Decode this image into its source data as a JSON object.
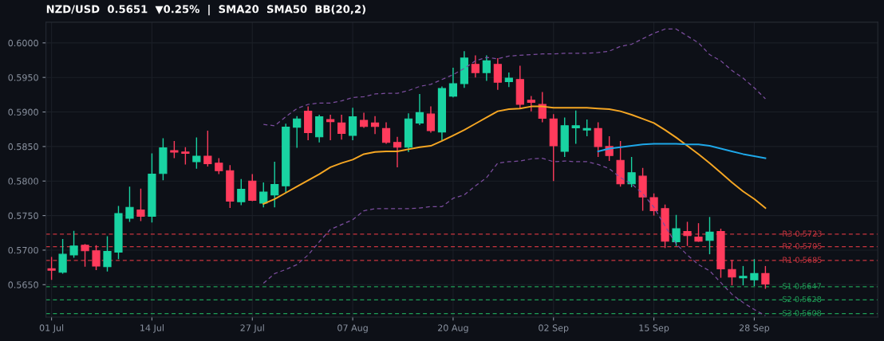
{
  "chart_data": {
    "type": "candlestick",
    "title": "NZD/USD  0.5651  ▼0.25%  |  SMA20  SMA50  BB(20,2)",
    "categories": [
      "01 Jul",
      null,
      null,
      null,
      null,
      null,
      null,
      null,
      null,
      "14 Jul",
      null,
      null,
      null,
      null,
      null,
      null,
      null,
      null,
      "27 Jul",
      null,
      null,
      null,
      null,
      null,
      null,
      null,
      null,
      "07 Aug",
      null,
      null,
      null,
      null,
      null,
      null,
      null,
      null,
      "20 Aug",
      null,
      null,
      null,
      null,
      null,
      null,
      null,
      null,
      "02 Sep",
      null,
      null,
      null,
      null,
      null,
      null,
      null,
      null,
      "15 Sep",
      null,
      null,
      null,
      null,
      null,
      null,
      null,
      null,
      "28 Sep",
      null
    ],
    "ohlc": [
      [
        0.5673,
        0.569,
        0.5657,
        0.5671
      ],
      [
        0.5668,
        0.5716,
        0.5666,
        0.5694
      ],
      [
        0.5693,
        0.5728,
        0.5689,
        0.5706
      ],
      [
        0.5707,
        0.5709,
        0.5676,
        0.5699
      ],
      [
        0.5699,
        0.5707,
        0.5671,
        0.5677
      ],
      [
        0.5676,
        0.572,
        0.5669,
        0.5698
      ],
      [
        0.5697,
        0.5764,
        0.5687,
        0.5753
      ],
      [
        0.5746,
        0.5792,
        0.5741,
        0.5762
      ],
      [
        0.5758,
        0.5789,
        0.5742,
        0.5749
      ],
      [
        0.5749,
        0.584,
        0.574,
        0.581
      ],
      [
        0.5811,
        0.5862,
        0.5801,
        0.5848
      ],
      [
        0.5844,
        0.5858,
        0.5833,
        0.5842
      ],
      [
        0.5842,
        0.5849,
        0.5824,
        0.584
      ],
      [
        0.5828,
        0.5863,
        0.5818,
        0.5836
      ],
      [
        0.5836,
        0.5873,
        0.5821,
        0.5825
      ],
      [
        0.5826,
        0.5833,
        0.581,
        0.5815
      ],
      [
        0.5815,
        0.5823,
        0.5761,
        0.5771
      ],
      [
        0.577,
        0.5803,
        0.5765,
        0.5788
      ],
      [
        0.58,
        0.581,
        0.5771,
        0.5772
      ],
      [
        0.5768,
        0.5798,
        0.5762,
        0.5784
      ],
      [
        0.578,
        0.5828,
        0.5762,
        0.5795
      ],
      [
        0.5793,
        0.5883,
        0.5783,
        0.5878
      ],
      [
        0.5878,
        0.5894,
        0.5848,
        0.589
      ],
      [
        0.5901,
        0.5908,
        0.5859,
        0.587
      ],
      [
        0.5864,
        0.5896,
        0.5856,
        0.5893
      ],
      [
        0.5889,
        0.5896,
        0.5859,
        0.5886
      ],
      [
        0.5884,
        0.5896,
        0.586,
        0.5869
      ],
      [
        0.5866,
        0.5906,
        0.5859,
        0.5893
      ],
      [
        0.5888,
        0.5899,
        0.5877,
        0.5879
      ],
      [
        0.5884,
        0.5894,
        0.5868,
        0.5879
      ],
      [
        0.5876,
        0.5885,
        0.5854,
        0.5856
      ],
      [
        0.5856,
        0.5864,
        0.582,
        0.5849
      ],
      [
        0.5849,
        0.5898,
        0.5842,
        0.589
      ],
      [
        0.5884,
        0.5926,
        0.5881,
        0.5899
      ],
      [
        0.5897,
        0.5908,
        0.587,
        0.5873
      ],
      [
        0.5871,
        0.5937,
        0.5859,
        0.5934
      ],
      [
        0.5923,
        0.5964,
        0.5921,
        0.5941
      ],
      [
        0.5941,
        0.5988,
        0.5935,
        0.5978
      ],
      [
        0.5969,
        0.5982,
        0.595,
        0.5957
      ],
      [
        0.5957,
        0.5982,
        0.5945,
        0.5974
      ],
      [
        0.5969,
        0.5978,
        0.5932,
        0.5943
      ],
      [
        0.5944,
        0.5957,
        0.5936,
        0.5949
      ],
      [
        0.5947,
        0.5967,
        0.5905,
        0.5911
      ],
      [
        0.5917,
        0.5923,
        0.5901,
        0.5914
      ],
      [
        0.5911,
        0.5929,
        0.5885,
        0.5891
      ],
      [
        0.589,
        0.5897,
        0.58,
        0.5851
      ],
      [
        0.5843,
        0.5892,
        0.5835,
        0.588
      ],
      [
        0.5877,
        0.5902,
        0.5854,
        0.588
      ],
      [
        0.5874,
        0.5889,
        0.5865,
        0.5876
      ],
      [
        0.5876,
        0.5885,
        0.5835,
        0.585
      ],
      [
        0.585,
        0.5865,
        0.5829,
        0.5837
      ],
      [
        0.583,
        0.5858,
        0.5792,
        0.5796
      ],
      [
        0.5796,
        0.5835,
        0.5791,
        0.5812
      ],
      [
        0.5807,
        0.5819,
        0.5757,
        0.5777
      ],
      [
        0.5776,
        0.5782,
        0.575,
        0.5757
      ],
      [
        0.576,
        0.5766,
        0.5703,
        0.5713
      ],
      [
        0.5712,
        0.5751,
        0.5706,
        0.5731
      ],
      [
        0.5727,
        0.5741,
        0.5706,
        0.5721
      ],
      [
        0.5719,
        0.5739,
        0.5712,
        0.5713
      ],
      [
        0.5714,
        0.5748,
        0.5694,
        0.5726
      ],
      [
        0.5727,
        0.5731,
        0.566,
        0.5673
      ],
      [
        0.5672,
        0.5686,
        0.5649,
        0.5661
      ],
      [
        0.566,
        0.5677,
        0.5649,
        0.5662
      ],
      [
        0.5657,
        0.5687,
        0.5648,
        0.5666
      ],
      [
        0.5666,
        0.5677,
        0.5644,
        0.5651
      ]
    ],
    "colors": [
      "#ff3b5c",
      "#19d3a2",
      "#19d3a2",
      "#ff3b5c",
      "#ff3b5c",
      "#19d3a2",
      "#19d3a2",
      "#19d3a2",
      "#ff3b5c",
      "#19d3a2",
      "#19d3a2",
      "#ff3b5c",
      "#ff3b5c",
      "#19d3a2",
      "#ff3b5c",
      "#ff3b5c",
      "#ff3b5c",
      "#19d3a2",
      "#ff3b5c",
      "#19d3a2",
      "#19d3a2",
      "#19d3a2",
      "#19d3a2",
      "#ff3b5c",
      "#19d3a2",
      "#ff3b5c",
      "#ff3b5c",
      "#19d3a2",
      "#ff3b5c",
      "#ff3b5c",
      "#ff3b5c",
      "#ff3b5c",
      "#19d3a2",
      "#19d3a2",
      "#ff3b5c",
      "#19d3a2",
      "#19d3a2",
      "#19d3a2",
      "#ff3b5c",
      "#19d3a2",
      "#ff3b5c",
      "#19d3a2",
      "#ff3b5c",
      "#ff3b5c",
      "#ff3b5c",
      "#ff3b5c",
      "#19d3a2",
      "#19d3a2",
      "#19d3a2",
      "#ff3b5c",
      "#ff3b5c",
      "#ff3b5c",
      "#19d3a2",
      "#ff3b5c",
      "#ff3b5c",
      "#ff3b5c",
      "#19d3a2",
      "#ff3b5c",
      "#ff3b5c",
      "#19d3a2",
      "#ff3b5c",
      "#ff3b5c",
      "#19d3a2",
      "#19d3a2",
      "#ff3b5c"
    ],
    "series": [
      {
        "type": "line",
        "color": "#f5a623",
        "line_style": "solid",
        "values": [
          null,
          null,
          null,
          null,
          null,
          null,
          null,
          null,
          null,
          null,
          null,
          null,
          null,
          null,
          null,
          null,
          null,
          null,
          null,
          0.5767,
          0.5774,
          0.5783,
          0.5792,
          0.5801,
          0.581,
          0.582,
          0.5826,
          0.5831,
          0.5839,
          0.5842,
          0.5843,
          0.5843,
          0.5846,
          0.5849,
          0.5851,
          0.5858,
          0.5866,
          0.5874,
          0.5883,
          0.5892,
          0.5901,
          0.5904,
          0.5905,
          0.5908,
          0.5908,
          0.5906,
          0.5906,
          0.5906,
          0.5906,
          0.5905,
          0.5904,
          0.5901,
          0.5896,
          0.589,
          0.5884,
          0.5874,
          0.5863,
          0.5851,
          0.5839,
          0.5826,
          0.5812,
          0.5798,
          0.5785,
          0.5774,
          0.5761
        ]
      },
      {
        "type": "line",
        "color": "#1ea7e8",
        "line_style": "solid",
        "values": [
          null,
          null,
          null,
          null,
          null,
          null,
          null,
          null,
          null,
          null,
          null,
          null,
          null,
          null,
          null,
          null,
          null,
          null,
          null,
          null,
          null,
          null,
          null,
          null,
          null,
          null,
          null,
          null,
          null,
          null,
          null,
          null,
          null,
          null,
          null,
          null,
          null,
          null,
          null,
          null,
          null,
          null,
          null,
          null,
          null,
          null,
          null,
          null,
          null,
          0.5843,
          0.5847,
          0.5849,
          0.5851,
          0.5853,
          0.5854,
          0.5854,
          0.5854,
          0.5853,
          0.5853,
          0.5851,
          0.5847,
          0.5843,
          0.5839,
          0.5836,
          0.5833
        ]
      },
      {
        "type": "line",
        "color": "#7b4d9e",
        "line_style": "dashed",
        "values": [
          null,
          null,
          null,
          null,
          null,
          null,
          null,
          null,
          null,
          null,
          null,
          null,
          null,
          null,
          null,
          null,
          null,
          null,
          null,
          0.5882,
          0.588,
          0.5893,
          0.5905,
          0.5911,
          0.5913,
          0.5913,
          0.5916,
          0.5921,
          0.5922,
          0.5926,
          0.5927,
          0.5927,
          0.5931,
          0.5937,
          0.594,
          0.5947,
          0.5954,
          0.5963,
          0.5974,
          0.5979,
          0.5977,
          0.5981,
          0.5982,
          0.5983,
          0.5984,
          0.5984,
          0.5985,
          0.5985,
          0.5985,
          0.5986,
          0.5988,
          0.5995,
          0.5998,
          0.6006,
          0.6014,
          0.602,
          0.602,
          0.601,
          0.6,
          0.5983,
          0.5974,
          0.596,
          0.5949,
          0.5935,
          0.5919
        ]
      },
      {
        "type": "line",
        "color": "#7b4d9e",
        "line_style": "dashed",
        "values": [
          null,
          null,
          null,
          null,
          null,
          null,
          null,
          null,
          null,
          null,
          null,
          null,
          null,
          null,
          null,
          null,
          null,
          null,
          null,
          0.5652,
          0.5666,
          0.5672,
          0.5679,
          0.5693,
          0.5712,
          0.573,
          0.5737,
          0.5744,
          0.5757,
          0.576,
          0.576,
          0.576,
          0.576,
          0.5761,
          0.5763,
          0.5763,
          0.5775,
          0.578,
          0.5793,
          0.5805,
          0.5826,
          0.5828,
          0.5829,
          0.5832,
          0.5833,
          0.5828,
          0.5829,
          0.5828,
          0.5828,
          0.5824,
          0.5818,
          0.5805,
          0.5796,
          0.5782,
          0.5762,
          0.5735,
          0.5709,
          0.5693,
          0.5679,
          0.567,
          0.5653,
          0.5636,
          0.5624,
          0.5614,
          0.5605
        ]
      }
    ],
    "ylim": [
      0.5603,
      0.603
    ],
    "yticks": [
      {
        "value": 0.565,
        "label": "0.5650"
      },
      {
        "value": 0.57,
        "label": "0.5700"
      },
      {
        "value": 0.575,
        "label": "0.5750"
      },
      {
        "value": 0.58,
        "label": "0.5800"
      },
      {
        "value": 0.585,
        "label": "0.5850"
      },
      {
        "value": 0.59,
        "label": "0.5900"
      },
      {
        "value": 0.595,
        "label": "0.5950"
      },
      {
        "value": 0.6,
        "label": "0.6000"
      }
    ],
    "ref_lines": [
      {
        "axis": "y",
        "value": 0.5723,
        "label": "R3 0.5723",
        "color": "#c9343f",
        "line_style": "dashed"
      },
      {
        "axis": "y",
        "value": 0.5705,
        "label": "R2 0.5705",
        "color": "#c9343f",
        "line_style": "dashed"
      },
      {
        "axis": "y",
        "value": 0.5685,
        "label": "R1 0.5685",
        "color": "#c9343f",
        "line_style": "dashed"
      },
      {
        "axis": "y",
        "value": 0.5647,
        "label": "S1 0.5647",
        "color": "#1f9e57",
        "line_style": "dashed"
      },
      {
        "axis": "y",
        "value": 0.5628,
        "label": "S2 0.5628",
        "color": "#1f9e57",
        "line_style": "dashed"
      },
      {
        "axis": "y",
        "value": 0.5608,
        "label": "S3 0.5608",
        "color": "#1f9e57",
        "line_style": "dashed"
      }
    ],
    "grid": true,
    "legend": false
  }
}
